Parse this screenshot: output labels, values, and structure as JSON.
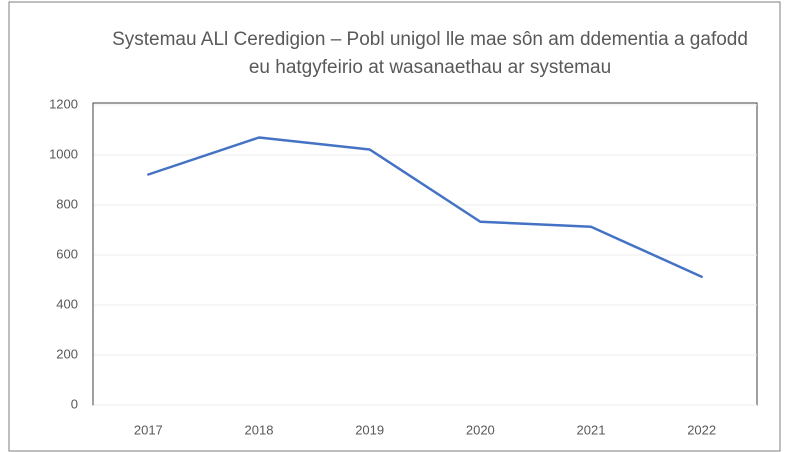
{
  "chart_data": {
    "type": "line",
    "title": "Systemau ALl Ceredigion – Pobl unigol lle mae sôn am ddementia a gafodd eu hatgyfeirio at wasanaethau ar systemau",
    "categories": [
      "2017",
      "2018",
      "2019",
      "2020",
      "2021",
      "2022"
    ],
    "values": [
      922,
      1070,
      1022,
      733,
      713,
      513
    ],
    "color": "#4472c4",
    "ylim": [
      0,
      1200
    ],
    "yticks": [
      0,
      200,
      400,
      600,
      800,
      1000,
      1200
    ],
    "grid": true
  }
}
